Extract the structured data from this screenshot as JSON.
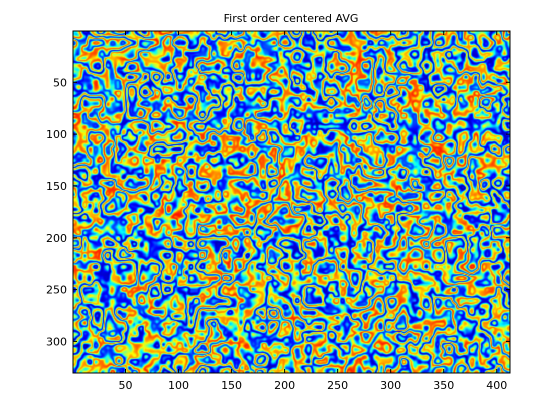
{
  "chart_data": {
    "type": "heatmap",
    "title": "First order centered AVG",
    "xlabel": "",
    "ylabel": "",
    "xlim": [
      0.5,
      412.5
    ],
    "ylim": [
      0.5,
      330.5
    ],
    "y_reversed": true,
    "colormap": "jet",
    "x_ticks": [
      50,
      100,
      150,
      200,
      250,
      300,
      350,
      400
    ],
    "y_ticks": [
      50,
      100,
      150,
      200,
      250,
      300
    ],
    "x_tick_labels": [
      "50",
      "100",
      "150",
      "200",
      "250",
      "300",
      "350",
      "400"
    ],
    "y_tick_labels": [
      "50",
      "100",
      "150",
      "200",
      "250",
      "300"
    ],
    "grid": false,
    "colors": {
      "background": "#ffffff",
      "axes_frame": "#000000",
      "jet_stops": [
        "#00008f",
        "#0000ff",
        "#00ffff",
        "#ffff00",
        "#ff0000",
        "#800000"
      ]
    }
  }
}
